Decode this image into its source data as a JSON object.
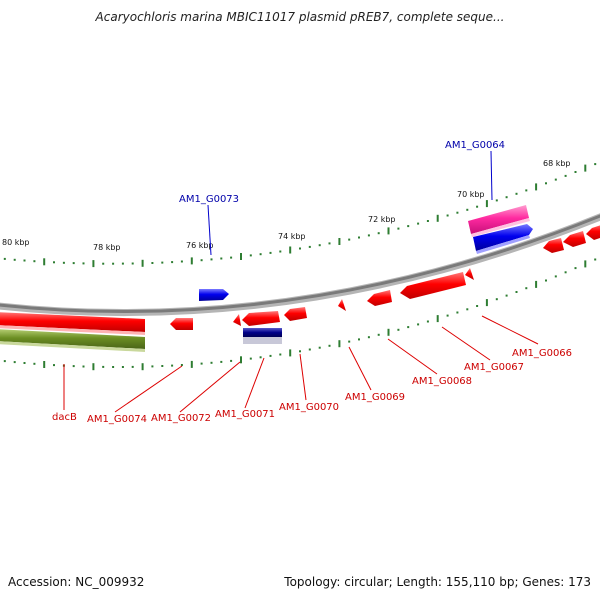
{
  "header": {
    "title": "Acaryochloris marina MBIC11017 plasmid pREB7, complete seque..."
  },
  "footer": {
    "accession": "Accession: NC_009932",
    "summary": "Topology: circular; Length: 155,110 bp; Genes: 173"
  },
  "kbp_labels": [
    "68 kbp",
    "70 kbp",
    "72 kbp",
    "74 kbp",
    "76 kbp",
    "78 kbp",
    "80 kbp"
  ],
  "gene_labels": {
    "top": [
      "AM1_G0064",
      "AM1_G0073"
    ],
    "bottom": [
      "dacB",
      "AM1_G0074",
      "AM1_G0072",
      "AM1_G0071",
      "AM1_G0070",
      "AM1_G0069",
      "AM1_G0068",
      "AM1_G0067",
      "AM1_G0066"
    ]
  },
  "colors": {
    "forward_cds": "#1a1aff",
    "reverse_cds": "#ff1a1a",
    "gene_band": "#ff0000",
    "rna_band": "#6b8e23",
    "pink_feature": "#ff3399",
    "backbone": "#8a8a8a",
    "tick": "#2e7d32"
  }
}
